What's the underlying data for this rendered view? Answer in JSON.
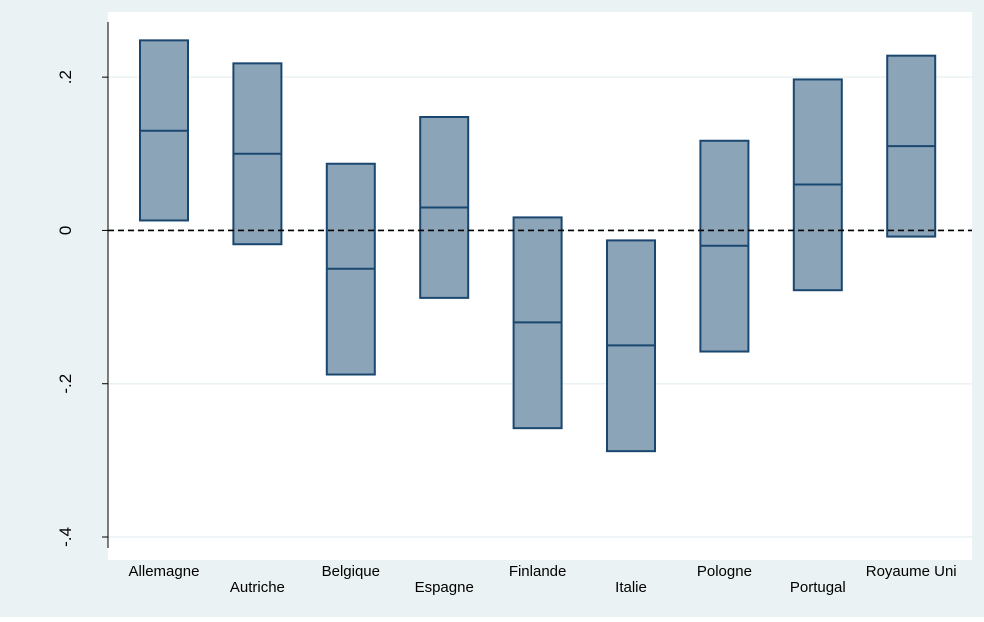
{
  "chart_data": {
    "type": "box",
    "categories": [
      "Allemagne",
      "Autriche",
      "Belgique",
      "Espagne",
      "Finlande",
      "Italie",
      "Pologne",
      "Portugal",
      "Royaume Uni"
    ],
    "boxes": [
      {
        "low": 0.013,
        "mid": 0.13,
        "high": 0.248
      },
      {
        "low": -0.018,
        "mid": 0.1,
        "high": 0.218
      },
      {
        "low": -0.188,
        "mid": -0.05,
        "high": 0.087
      },
      {
        "low": -0.088,
        "mid": 0.03,
        "high": 0.148
      },
      {
        "low": -0.258,
        "mid": -0.12,
        "high": 0.017
      },
      {
        "low": -0.288,
        "mid": -0.15,
        "high": -0.013
      },
      {
        "low": -0.158,
        "mid": -0.02,
        "high": 0.117
      },
      {
        "low": -0.078,
        "mid": 0.06,
        "high": 0.197
      },
      {
        "low": -0.008,
        "mid": 0.11,
        "high": 0.228
      }
    ],
    "yticks": [
      {
        "value": 0.2,
        "label": ".2"
      },
      {
        "value": 0,
        "label": "0"
      },
      {
        "value": -0.2,
        "label": "-.2"
      },
      {
        "value": -0.4,
        "label": "-.4"
      }
    ],
    "ylim": [
      -0.43,
      0.285
    ],
    "reference_line": 0,
    "xlabel": "",
    "ylabel": "",
    "title": "",
    "grid": true,
    "legend": "none",
    "colors": {
      "outer_background": "#eaf2f3",
      "plot_background": "#ffffff",
      "box_fill": "#8ca4b8",
      "box_stroke": "#1a476f",
      "grid": "#eaf2f3",
      "axis": "#000000",
      "reference_line": "#000000"
    }
  }
}
